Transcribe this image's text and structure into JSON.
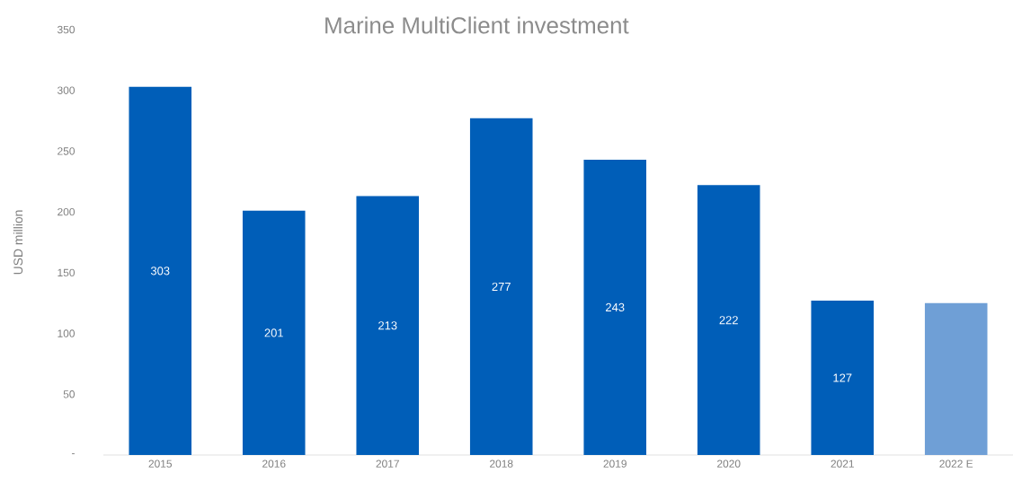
{
  "chart_data": {
    "type": "bar",
    "title": "Marine MultiClient investment",
    "ylabel": "USD million",
    "categories": [
      "2015",
      "2016",
      "2017",
      "2018",
      "2019",
      "2020",
      "2021",
      "2022 E"
    ],
    "values": [
      303,
      201,
      213,
      277,
      243,
      222,
      127,
      125
    ],
    "value_labels": [
      "303",
      "201",
      "213",
      "277",
      "243",
      "222",
      "127",
      null
    ],
    "colors": [
      "#005eb8",
      "#005eb8",
      "#005eb8",
      "#005eb8",
      "#005eb8",
      "#005eb8",
      "#005eb8",
      "#6f9fd6"
    ],
    "ylim": [
      0,
      350
    ],
    "yticks": [
      {
        "value": 0,
        "label": "-"
      },
      50,
      100,
      150,
      200,
      250,
      300,
      350
    ],
    "grid": false
  }
}
